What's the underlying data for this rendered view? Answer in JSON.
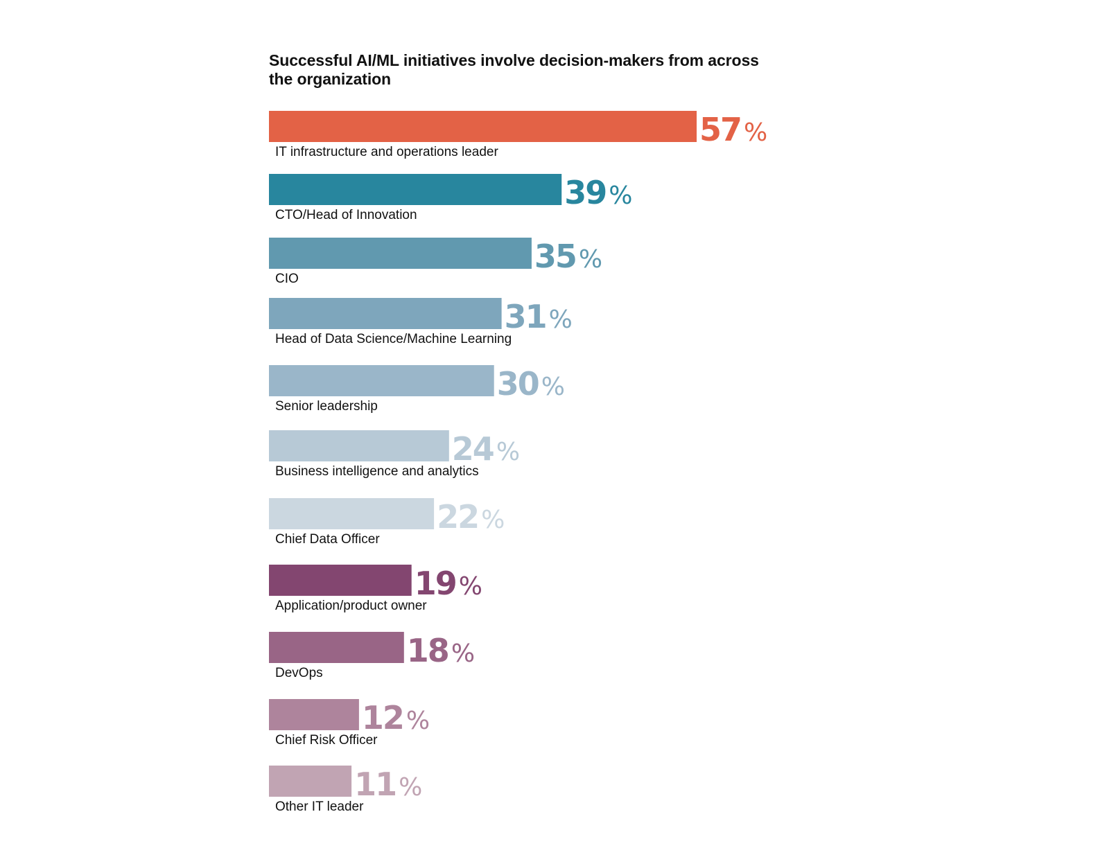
{
  "chart_data": {
    "type": "bar",
    "orientation": "horizontal",
    "title": "Successful AI/ML initiatives involve decision-makers from across the organization",
    "unit": "%",
    "categories": [
      "IT infrastructure and operations leader",
      "CTO/Head of Innovation",
      "CIO",
      "Head of Data Science/Machine Learning",
      "Senior leadership",
      "Business intelligence and analytics",
      "Chief Data Officer",
      "Application/product owner",
      "DevOps",
      "Chief Risk Officer",
      "Other IT leader"
    ],
    "values": [
      57,
      39,
      35,
      31,
      30,
      24,
      22,
      19,
      18,
      12,
      11
    ],
    "colors": [
      "#E36246",
      "#28869E",
      "#6199AF",
      "#7EA6BC",
      "#9AB6C9",
      "#B7C9D6",
      "#CBD7E0",
      "#834670",
      "#996586",
      "#AE849C",
      "#C1A4B3"
    ],
    "xlim": [
      0,
      57
    ],
    "grid": false,
    "legend": "none"
  }
}
